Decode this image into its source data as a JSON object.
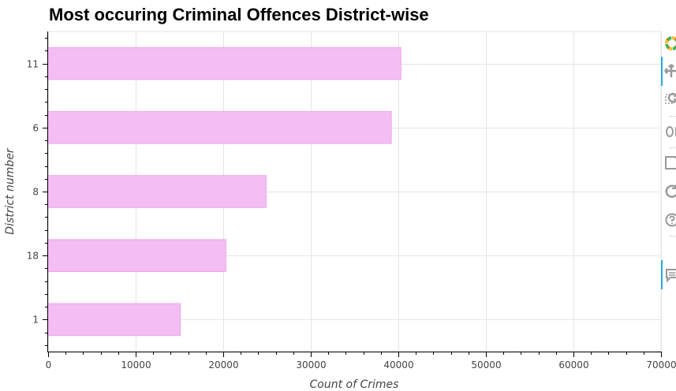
{
  "chart_data": {
    "type": "bar",
    "orientation": "horizontal",
    "title": "Most occuring Criminal Offences District-wise",
    "xlabel": "Count of Crimes",
    "ylabel": "District number",
    "categories": [
      "11",
      "6",
      "8",
      "18",
      "1"
    ],
    "values": [
      40300,
      39200,
      24900,
      20300,
      15100
    ],
    "xlim": [
      0,
      70000
    ],
    "xticks": [
      0,
      10000,
      20000,
      30000,
      40000,
      50000,
      60000,
      70000
    ],
    "grid": true,
    "legend": "none",
    "bar_color": "#f4bdf4",
    "bar_edge_color": "#eea6ee"
  },
  "toolbar": {
    "tools": [
      "bokeh-logo-icon",
      "pan-icon",
      "box-zoom-icon",
      "wheel-zoom-icon",
      "save-icon",
      "reset-icon",
      "help-icon",
      "hover-icon"
    ]
  }
}
